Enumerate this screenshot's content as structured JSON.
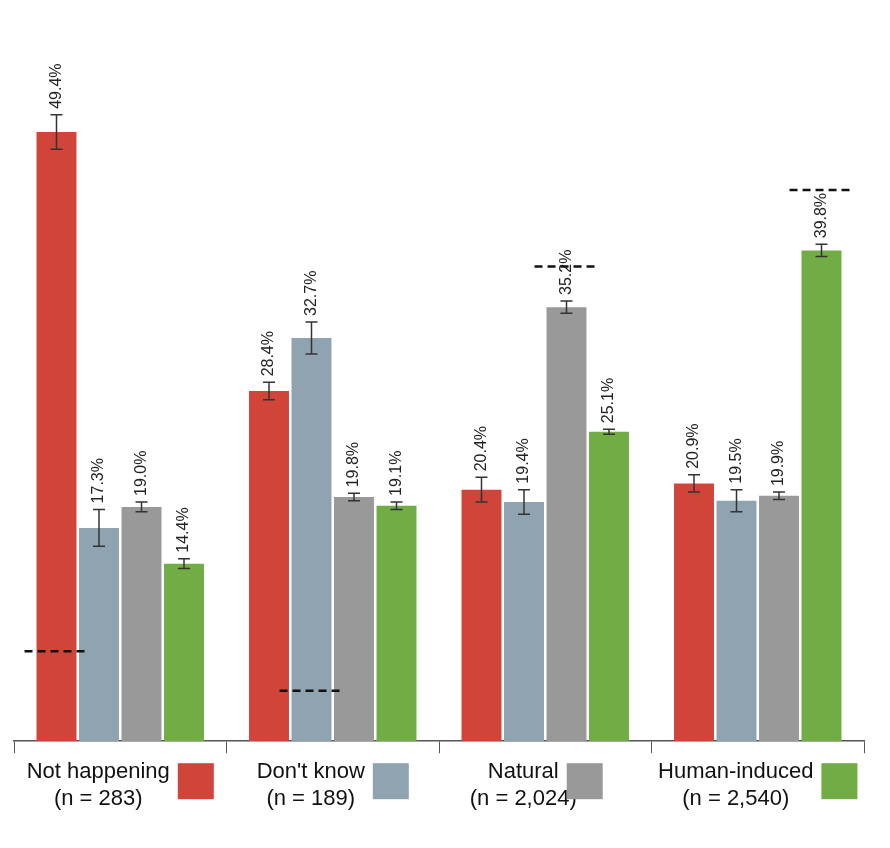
{
  "chart_data": {
    "type": "bar",
    "categories": [
      "Not happening (n = 283)",
      "Don't know (n = 189)",
      "Natural (n = 2,024)",
      "Human-induced (n = 2,540)"
    ],
    "series": [
      {
        "name": "Not happening",
        "color": "#d0443a",
        "values": [
          49.4,
          28.4,
          20.4,
          20.9
        ],
        "errors": [
          1.4,
          0.7,
          1.0,
          0.7
        ],
        "value_labels": [
          "49.4%",
          "28.4%",
          "20.4%",
          "20.9%"
        ]
      },
      {
        "name": "Don't know",
        "color": "#8fa4b0",
        "values": [
          17.3,
          32.7,
          19.4,
          19.5
        ],
        "errors": [
          1.5,
          1.3,
          1.0,
          0.9
        ],
        "value_labels": [
          "17.3%",
          "32.7%",
          "19.4%",
          "19.5%"
        ]
      },
      {
        "name": "Natural",
        "color": "#999999",
        "values": [
          19.0,
          19.8,
          35.2,
          19.9
        ],
        "errors": [
          0.4,
          0.3,
          0.5,
          0.3
        ],
        "value_labels": [
          "19.0%",
          "19.8%",
          "35.2%",
          "19.9%"
        ]
      },
      {
        "name": "Human-induced",
        "color": "#72ac44",
        "values": [
          14.4,
          19.1,
          25.1,
          39.8
        ],
        "errors": [
          0.4,
          0.3,
          0.2,
          0.5
        ],
        "value_labels": [
          "14.4%",
          "19.1%",
          "25.1%",
          "39.8%"
        ]
      }
    ],
    "reference": [
      7.3,
      4.1,
      38.5,
      44.7
    ],
    "ylim": [
      0,
      52
    ],
    "grid": false,
    "legend": "bottom",
    "data_labels": true,
    "tick_labels": "x"
  }
}
